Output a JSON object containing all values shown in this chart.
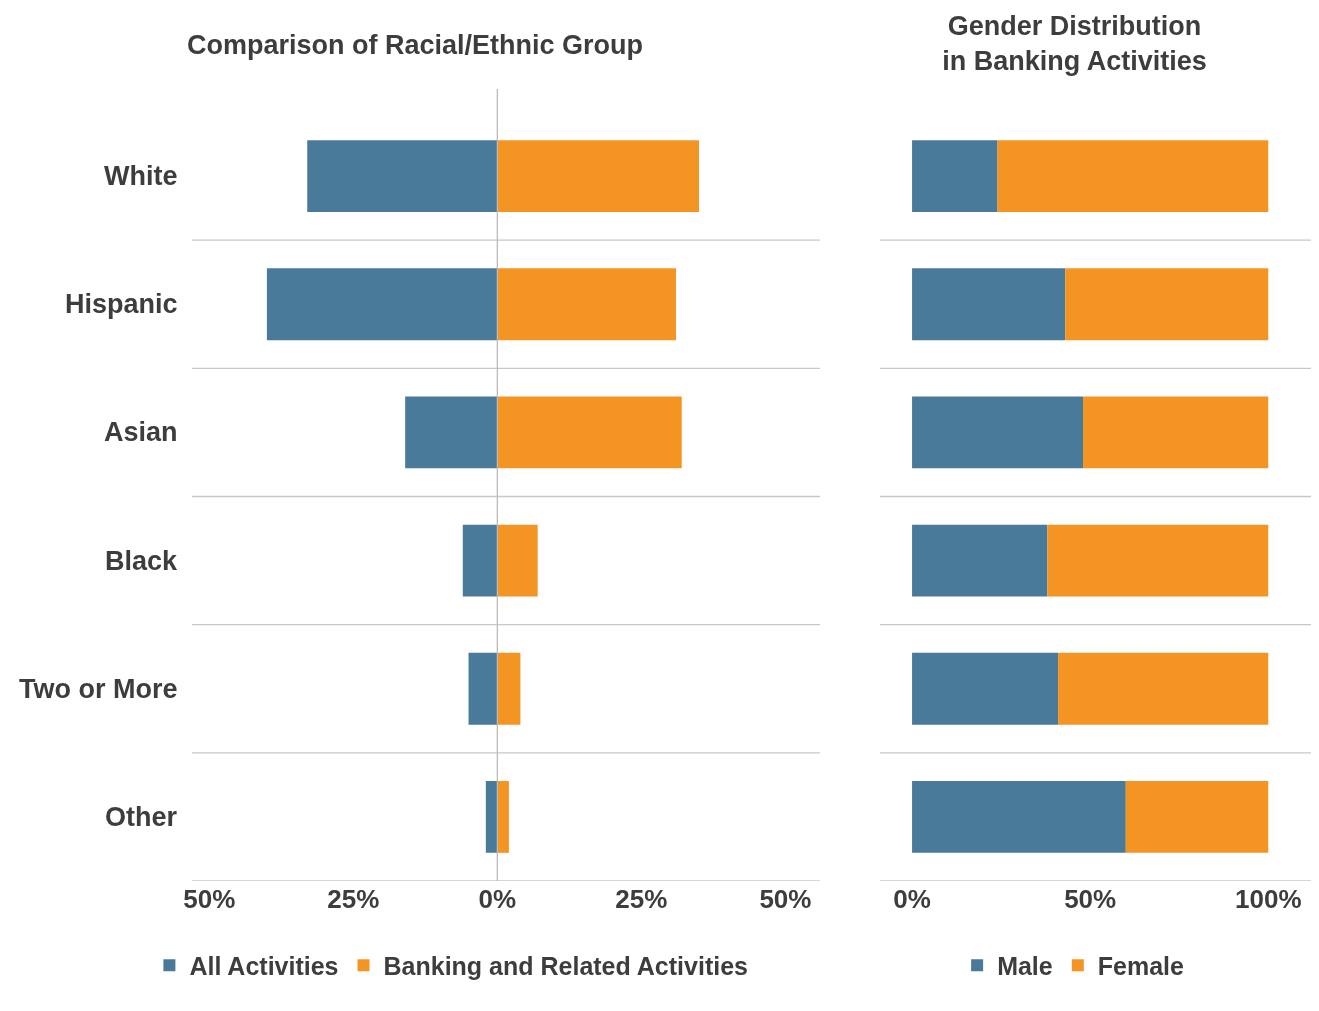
{
  "chart_data": [
    {
      "type": "bar",
      "title": "Comparison of Racial/Ethnic Group",
      "orientation": "horizontal",
      "stacked": true,
      "categories": [
        "White",
        "Hispanic",
        "Asian",
        "Black",
        "Two or More",
        "Other"
      ],
      "series": [
        {
          "name": "All Activities",
          "color": "#4a7a99",
          "values": [
            -33,
            -40,
            -16,
            -6,
            -5,
            -2
          ]
        },
        {
          "name": "Banking and Related Activities",
          "color": "#f39423",
          "values": [
            35,
            31,
            32,
            7,
            4,
            2
          ]
        }
      ],
      "xlim": [
        -53,
        56
      ],
      "xticks": [
        {
          "value": -50,
          "label": "50%"
        },
        {
          "value": -25,
          "label": "25%"
        },
        {
          "value": 0,
          "label": "0%"
        },
        {
          "value": 25,
          "label": "25%"
        },
        {
          "value": 50,
          "label": "50%"
        }
      ],
      "ref_lines": [
        {
          "axis": "x",
          "value": 0,
          "color": "#bbbbbb"
        }
      ],
      "grid": "y",
      "legend": "bottom"
    },
    {
      "type": "bar",
      "title": "Gender Distribution\nin Banking Activities",
      "orientation": "horizontal",
      "stacked": true,
      "categories": [
        null,
        null,
        null,
        null,
        null,
        null
      ],
      "series": [
        {
          "name": "Male",
          "color": "#4a7a99",
          "values": [
            24,
            43,
            48,
            38,
            41,
            60
          ]
        },
        {
          "name": "Female",
          "color": "#f39423",
          "values": [
            76,
            57,
            52,
            62,
            59,
            40
          ]
        }
      ],
      "xlim": [
        -9,
        112
      ],
      "xticks": [
        {
          "value": 0,
          "label": "0%"
        },
        {
          "value": 50,
          "label": "50%"
        },
        {
          "value": 100,
          "label": "100%"
        }
      ],
      "grid": "y",
      "legend": "bottom",
      "tick_labels": "x"
    }
  ]
}
